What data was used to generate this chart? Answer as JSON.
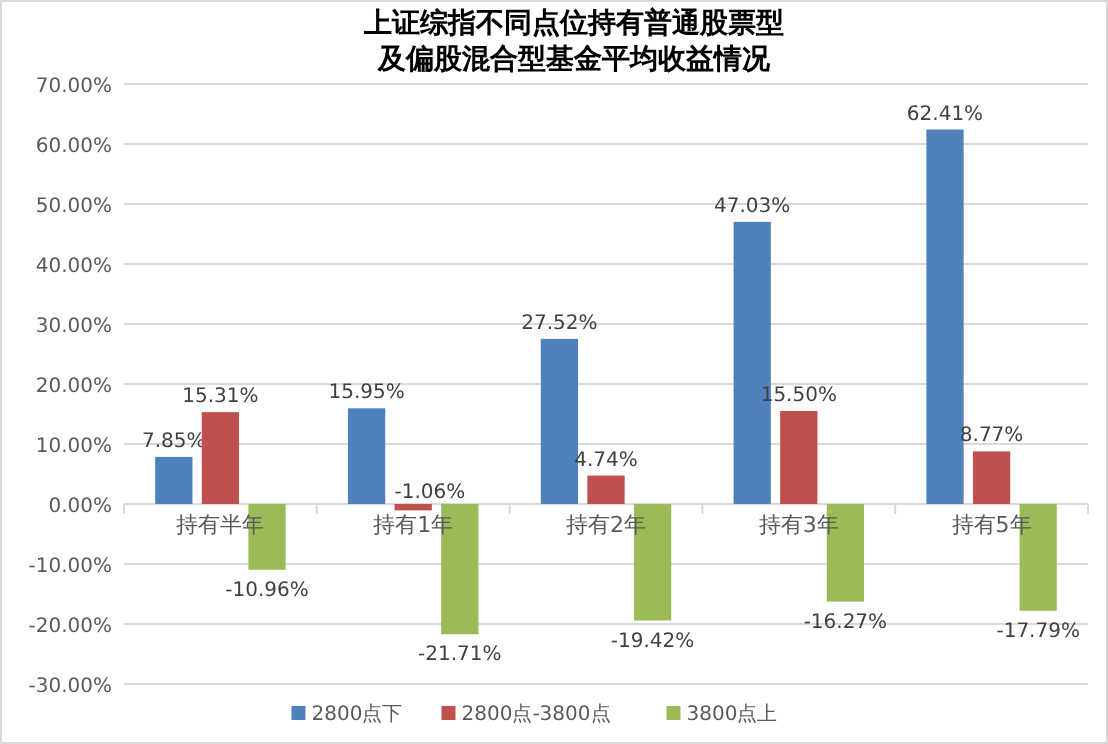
{
  "chart_data": {
    "type": "bar",
    "title": "上证综指不同点位持有普通股票型及偏股混合型基金平均收益情况",
    "categories": [
      "持有半年",
      "持有1年",
      "持有2年",
      "持有3年",
      "持有5年"
    ],
    "series": [
      {
        "name": "2800点下",
        "color": "#4f81bd",
        "values": [
          7.85,
          15.95,
          27.52,
          47.03,
          62.41
        ],
        "value_labels": [
          "7.85%",
          "15.95%",
          "27.52%",
          "47.03%",
          "62.41%"
        ]
      },
      {
        "name": "2800点-3800点",
        "color": "#c0504d",
        "values": [
          15.31,
          -1.06,
          4.74,
          15.5,
          8.77
        ],
        "value_labels": [
          "15.31%",
          "-1.06%",
          "4.74%",
          "15.50%",
          "8.77%"
        ]
      },
      {
        "name": "3800点上",
        "color": "#9bbb59",
        "values": [
          -10.96,
          -21.71,
          -19.42,
          -16.27,
          -17.79
        ],
        "value_labels": [
          "-10.96%",
          "-21.71%",
          "-19.42%",
          "-16.27%",
          "-17.79%"
        ]
      }
    ],
    "ylim": [
      -30,
      70
    ],
    "yticks": [
      {
        "value": -30,
        "label": "-30.00%"
      },
      {
        "value": -20,
        "label": "-20.00%"
      },
      {
        "value": -10,
        "label": "-10.00%"
      },
      {
        "value": 0,
        "label": "0.00%"
      },
      {
        "value": 10,
        "label": "10.00%"
      },
      {
        "value": 20,
        "label": "20.00%"
      },
      {
        "value": 30,
        "label": "30.00%"
      },
      {
        "value": 40,
        "label": "40.00%"
      },
      {
        "value": 50,
        "label": "50.00%"
      },
      {
        "value": 60,
        "label": "60.00%"
      },
      {
        "value": 70,
        "label": "70.00%"
      }
    ],
    "grid": "y",
    "legend": "bottom"
  }
}
